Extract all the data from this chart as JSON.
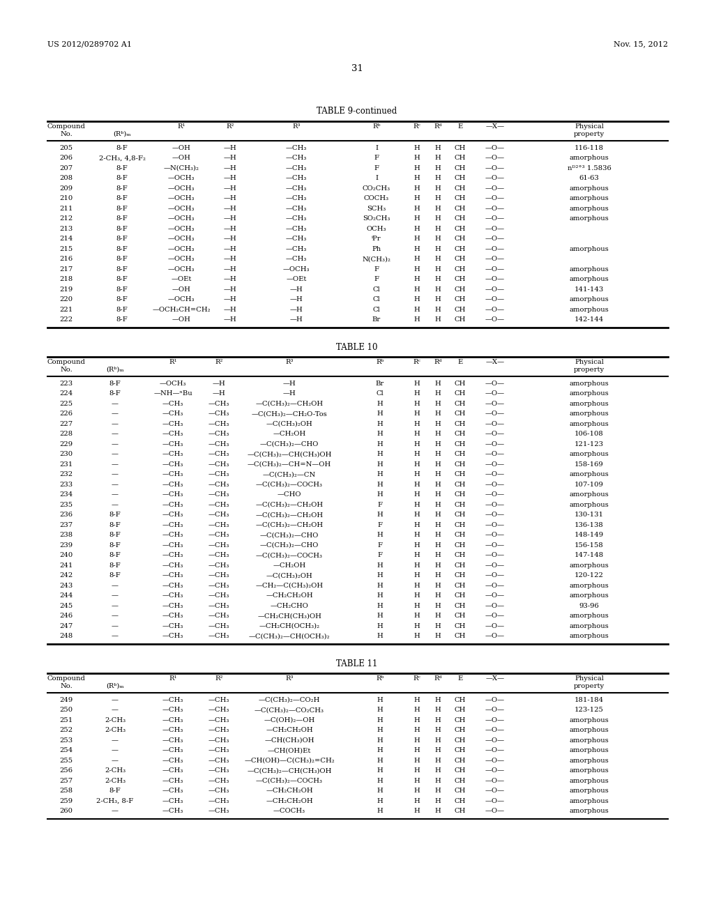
{
  "header_left": "US 2012/0289702 A1",
  "header_right": "Nov. 15, 2012",
  "page_number": "31",
  "background_color": "#ffffff",
  "table9_title": "TABLE 9-continued",
  "table9_rows": [
    [
      "205",
      "8-F",
      "—OH",
      "—H",
      "—CH₃",
      "I",
      "H",
      "H",
      "CH",
      "—O—",
      "116-118"
    ],
    [
      "206",
      "2-CH₃, 4,8-F₂",
      "—OH",
      "—H",
      "—CH₃",
      "F",
      "H",
      "H",
      "CH",
      "—O—",
      "amorphous"
    ],
    [
      "207",
      "8-F",
      "—N(CH₃)₂",
      "—H",
      "—CH₃",
      "F",
      "H",
      "H",
      "CH",
      "—O—",
      "nᴰ²°³ 1.5836"
    ],
    [
      "208",
      "8-F",
      "—OCH₃",
      "—H",
      "—CH₃",
      "I",
      "H",
      "H",
      "CH",
      "—O—",
      "61-63"
    ],
    [
      "209",
      "8-F",
      "—OCH₃",
      "—H",
      "—CH₃",
      "CO₂CH₃",
      "H",
      "H",
      "CH",
      "—O—",
      "amorphous"
    ],
    [
      "210",
      "8-F",
      "—OCH₃",
      "—H",
      "—CH₃",
      "COCH₃",
      "H",
      "H",
      "CH",
      "—O—",
      "amorphous"
    ],
    [
      "211",
      "8-F",
      "—OCH₃",
      "—H",
      "—CH₃",
      "SCH₃",
      "H",
      "H",
      "CH",
      "—O—",
      "amorphous"
    ],
    [
      "212",
      "8-F",
      "—OCH₃",
      "—H",
      "—CH₃",
      "SO₂CH₃",
      "H",
      "H",
      "CH",
      "—O—",
      "amorphous"
    ],
    [
      "213",
      "8-F",
      "—OCH₃",
      "—H",
      "—CH₃",
      "OCH₃",
      "H",
      "H",
      "CH",
      "—O—",
      ""
    ],
    [
      "214",
      "8-F",
      "—OCH₃",
      "—H",
      "—CH₃",
      "ⁱPr",
      "H",
      "H",
      "CH",
      "—O—",
      ""
    ],
    [
      "215",
      "8-F",
      "—OCH₃",
      "—H",
      "—CH₃",
      "Ph",
      "H",
      "H",
      "CH",
      "—O—",
      "amorphous"
    ],
    [
      "216",
      "8-F",
      "—OCH₃",
      "—H",
      "—CH₃",
      "N(CH₃)₂",
      "H",
      "H",
      "CH",
      "—O—",
      ""
    ],
    [
      "217",
      "8-F",
      "—OCH₃",
      "—H",
      "—OCH₃",
      "F",
      "H",
      "H",
      "CH",
      "—O—",
      "amorphous"
    ],
    [
      "218",
      "8-F",
      "—OEt",
      "—H",
      "—OEt",
      "F",
      "H",
      "H",
      "CH",
      "—O—",
      "amorphous"
    ],
    [
      "219",
      "8-F",
      "—OH",
      "—H",
      "—H",
      "Cl",
      "H",
      "H",
      "CH",
      "—O—",
      "141-143"
    ],
    [
      "220",
      "8-F",
      "—OCH₃",
      "—H",
      "—H",
      "Cl",
      "H",
      "H",
      "CH",
      "—O—",
      "amorphous"
    ],
    [
      "221",
      "8-F",
      "—OCH₂CH=CH₂",
      "—H",
      "—H",
      "Cl",
      "H",
      "H",
      "CH",
      "—O—",
      "amorphous"
    ],
    [
      "222",
      "8-F",
      "—OH",
      "—H",
      "—H",
      "Br",
      "H",
      "H",
      "CH",
      "—O—",
      "142-144"
    ]
  ],
  "table10_title": "TABLE 10",
  "table10_rows": [
    [
      "223",
      "8-F",
      "—OCH₃",
      "—H",
      "—H",
      "Br",
      "H",
      "H",
      "CH",
      "—O—",
      "amorphous"
    ],
    [
      "224",
      "8-F",
      "—NH—ⁿBu",
      "—H",
      "—H",
      "Cl",
      "H",
      "H",
      "CH",
      "—O—",
      "amorphous"
    ],
    [
      "225",
      "—",
      "—CH₃",
      "—CH₃",
      "—C(CH₃)₂—CH₂OH",
      "H",
      "H",
      "H",
      "CH",
      "—O—",
      "amorphous"
    ],
    [
      "226",
      "—",
      "—CH₃",
      "—CH₃",
      "—C(CH₃)₂—CH₂O-Tos",
      "H",
      "H",
      "H",
      "CH",
      "—O—",
      "amorphous"
    ],
    [
      "227",
      "—",
      "—CH₃",
      "—CH₃",
      "—C(CH₃)₂OH",
      "H",
      "H",
      "H",
      "CH",
      "—O—",
      "amorphous"
    ],
    [
      "228",
      "—",
      "—CH₃",
      "—CH₃",
      "—CH₂OH",
      "H",
      "H",
      "H",
      "CH",
      "—O—",
      "106-108"
    ],
    [
      "229",
      "—",
      "—CH₃",
      "—CH₃",
      "—C(CH₃)₂—CHO",
      "H",
      "H",
      "H",
      "CH",
      "—O—",
      "121-123"
    ],
    [
      "230",
      "—",
      "—CH₃",
      "—CH₃",
      "—C(CH₃)₂—CH(CH₃)OH",
      "H",
      "H",
      "H",
      "CH",
      "—O—",
      "amorphous"
    ],
    [
      "231",
      "—",
      "—CH₃",
      "—CH₃",
      "—C(CH₃)₂—CH=N—OH",
      "H",
      "H",
      "H",
      "CH",
      "—O—",
      "158-169"
    ],
    [
      "232",
      "—",
      "—CH₃",
      "—CH₃",
      "—C(CH₃)₂—CN",
      "H",
      "H",
      "H",
      "CH",
      "—O—",
      "amorphous"
    ],
    [
      "233",
      "—",
      "—CH₃",
      "—CH₃",
      "—C(CH₃)₂—COCH₃",
      "H",
      "H",
      "H",
      "CH",
      "—O—",
      "107-109"
    ],
    [
      "234",
      "—",
      "—CH₃",
      "—CH₃",
      "—CHO",
      "H",
      "H",
      "H",
      "CH",
      "—O—",
      "amorphous"
    ],
    [
      "235",
      "—",
      "—CH₃",
      "—CH₃",
      "—C(CH₃)₂—CH₂OH",
      "F",
      "H",
      "H",
      "CH",
      "—O—",
      "amorphous"
    ],
    [
      "236",
      "8-F",
      "—CH₃",
      "—CH₃",
      "—C(CH₃)₂—CH₂OH",
      "H",
      "H",
      "H",
      "CH",
      "—O—",
      "130-131"
    ],
    [
      "237",
      "8-F",
      "—CH₃",
      "—CH₃",
      "—C(CH₃)₂—CH₂OH",
      "F",
      "H",
      "H",
      "CH",
      "—O—",
      "136-138"
    ],
    [
      "238",
      "8-F",
      "—CH₃",
      "—CH₃",
      "—C(CH₃)₂—CHO",
      "H",
      "H",
      "H",
      "CH",
      "—O—",
      "148-149"
    ],
    [
      "239",
      "8-F",
      "—CH₃",
      "—CH₃",
      "—C(CH₃)₂—CHO",
      "F",
      "H",
      "H",
      "CH",
      "—O—",
      "156-158"
    ],
    [
      "240",
      "8-F",
      "—CH₃",
      "—CH₃",
      "—C(CH₃)₂—COCH₃",
      "F",
      "H",
      "H",
      "CH",
      "—O—",
      "147-148"
    ],
    [
      "241",
      "8-F",
      "—CH₃",
      "—CH₃",
      "—CH₂OH",
      "H",
      "H",
      "H",
      "CH",
      "—O—",
      "amorphous"
    ],
    [
      "242",
      "8-F",
      "—CH₃",
      "—CH₃",
      "—C(CH₃)₂OH",
      "H",
      "H",
      "H",
      "CH",
      "—O—",
      "120-122"
    ],
    [
      "243",
      "—",
      "—CH₃",
      "—CH₃",
      "—CH₂—C(CH₃)₂OH",
      "H",
      "H",
      "H",
      "CH",
      "—O—",
      "amorphous"
    ],
    [
      "244",
      "—",
      "—CH₃",
      "—CH₃",
      "—CH₂CH₂OH",
      "H",
      "H",
      "H",
      "CH",
      "—O—",
      "amorphous"
    ],
    [
      "245",
      "—",
      "—CH₃",
      "—CH₃",
      "—CH₂CHO",
      "H",
      "H",
      "H",
      "CH",
      "—O—",
      "93-96"
    ],
    [
      "246",
      "—",
      "—CH₃",
      "—CH₃",
      "—CH₂CH(CH₃)OH",
      "H",
      "H",
      "H",
      "CH",
      "—O—",
      "amorphous"
    ],
    [
      "247",
      "—",
      "—CH₃",
      "—CH₃",
      "—CH₂CH(OCH₃)₂",
      "H",
      "H",
      "H",
      "CH",
      "—O—",
      "amorphous"
    ],
    [
      "248",
      "—",
      "—CH₃",
      "—CH₃",
      "—C(CH₃)₂—CH(OCH₃)₂",
      "H",
      "H",
      "H",
      "CH",
      "—O—",
      "amorphous"
    ]
  ],
  "table11_title": "TABLE 11",
  "table11_rows": [
    [
      "249",
      "—",
      "—CH₃",
      "—CH₃",
      "—C(CH₃)₂—CO₂H",
      "H",
      "H",
      "H",
      "CH",
      "—O—",
      "181-184"
    ],
    [
      "250",
      "—",
      "—CH₃",
      "—CH₃",
      "—C(CH₃)₂—CO₂CH₃",
      "H",
      "H",
      "H",
      "CH",
      "—O—",
      "123-125"
    ],
    [
      "251",
      "2-CH₃",
      "—CH₃",
      "—CH₃",
      "—C(OH)₂—OH",
      "H",
      "H",
      "H",
      "CH",
      "—O—",
      "amorphous"
    ],
    [
      "252",
      "2-CH₃",
      "—CH₃",
      "—CH₃",
      "—CH₂CH₂OH",
      "H",
      "H",
      "H",
      "CH",
      "—O—",
      "amorphous"
    ],
    [
      "253",
      "—",
      "—CH₃",
      "—CH₃",
      "—CH(CH₃)OH",
      "H",
      "H",
      "H",
      "CH",
      "—O—",
      "amorphous"
    ],
    [
      "254",
      "—",
      "—CH₃",
      "—CH₃",
      "—CH(OH)Et",
      "H",
      "H",
      "H",
      "CH",
      "—O—",
      "amorphous"
    ],
    [
      "255",
      "—",
      "—CH₃",
      "—CH₃",
      "—CH(OH)—C(CH₃)₂=CH₂",
      "H",
      "H",
      "H",
      "CH",
      "—O—",
      "amorphous"
    ],
    [
      "256",
      "2-CH₃",
      "—CH₃",
      "—CH₃",
      "—C(CH₃)₂—CH(CH₃)OH",
      "H",
      "H",
      "H",
      "CH",
      "—O—",
      "amorphous"
    ],
    [
      "257",
      "2-CH₃",
      "—CH₃",
      "—CH₃",
      "—C(CH₃)₂—COCH₃",
      "H",
      "H",
      "H",
      "CH",
      "—O—",
      "amorphous"
    ],
    [
      "258",
      "8-F",
      "—CH₃",
      "—CH₃",
      "—CH₂CH₂OH",
      "H",
      "H",
      "H",
      "CH",
      "—O—",
      "amorphous"
    ],
    [
      "259",
      "2-CH₃, 8-F",
      "—CH₃",
      "—CH₃",
      "—CH₂CH₂OH",
      "H",
      "H",
      "H",
      "CH",
      "—O—",
      "amorphous"
    ],
    [
      "260",
      "—",
      "—CH₃",
      "—CH₃",
      "—COCH₃",
      "H",
      "H",
      "H",
      "CH",
      "—O—",
      "amorphous"
    ]
  ]
}
